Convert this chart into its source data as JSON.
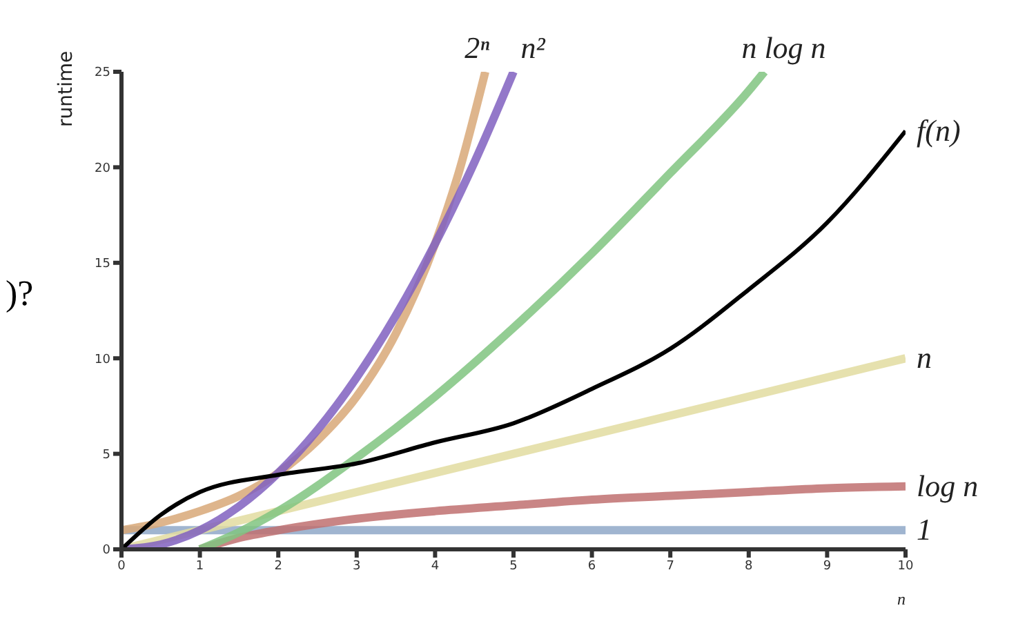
{
  "chart_data": {
    "type": "line",
    "xlabel": "n",
    "ylabel": "runtime",
    "annotations": [
      ")?"
    ],
    "xlim": [
      0,
      10
    ],
    "xticks": [
      0,
      1,
      2,
      3,
      4,
      5,
      6,
      7,
      8,
      9,
      10
    ],
    "ylim": [
      0,
      25
    ],
    "yticks": [
      0,
      5,
      10,
      15,
      20,
      25
    ],
    "grid": false,
    "legend": false,
    "marker": "none",
    "line_style": "solid",
    "series": [
      {
        "name": "1",
        "color": "#8fa8c8",
        "x": [
          0,
          10
        ],
        "values": [
          1,
          1
        ]
      },
      {
        "name": "log n",
        "color": "#c07070",
        "x": [
          1,
          1.5,
          2,
          3,
          4,
          5,
          6,
          7,
          8,
          9,
          10
        ],
        "values": [
          0,
          0.6,
          1,
          1.6,
          2,
          2.3,
          2.6,
          2.8,
          3,
          3.2,
          3.3
        ]
      },
      {
        "name": "n",
        "color": "#e2dca0",
        "x": [
          0,
          10
        ],
        "values": [
          0,
          10
        ]
      },
      {
        "name": "n log n",
        "color": "#80c480",
        "x": [
          1,
          1.5,
          2,
          3,
          4,
          5,
          6,
          7,
          8,
          8.2
        ],
        "values": [
          0,
          0.9,
          2,
          4.8,
          8,
          11.6,
          15.5,
          19.7,
          24,
          25
        ]
      },
      {
        "name": "2ⁿ",
        "color": "#d8a878",
        "x": [
          0,
          0.5,
          1,
          1.5,
          2,
          2.5,
          3,
          3.5,
          4,
          4.3,
          4.64
        ],
        "values": [
          1,
          1.4,
          2,
          2.8,
          4,
          5.7,
          8,
          11.3,
          16,
          19.7,
          25
        ]
      },
      {
        "name": "n²",
        "color": "#8060c0",
        "x": [
          0,
          0.5,
          1,
          1.5,
          2,
          2.5,
          3,
          3.5,
          4,
          4.5,
          5
        ],
        "values": [
          0,
          0.25,
          1,
          2.25,
          4,
          6.25,
          9,
          12.25,
          16,
          20.25,
          25
        ]
      },
      {
        "name": "f(n)",
        "color": "#000000",
        "x": [
          0,
          0.5,
          1,
          2,
          3,
          4,
          5,
          6,
          7,
          8,
          9,
          10
        ],
        "values": [
          0,
          1.8,
          3,
          3.9,
          4.5,
          5.6,
          6.6,
          8.4,
          10.5,
          13.6,
          17.1,
          21.9
        ]
      }
    ]
  }
}
